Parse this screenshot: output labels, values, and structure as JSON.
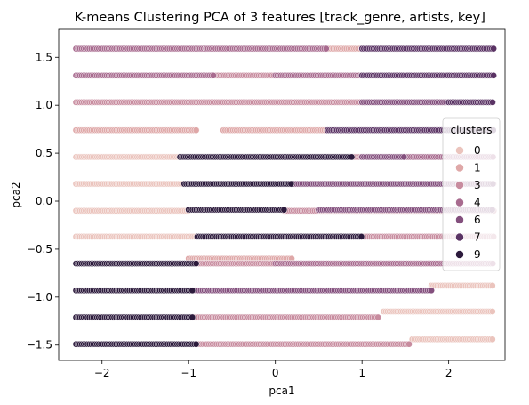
{
  "chart_data": {
    "type": "scatter",
    "title": "K-means Clustering PCA of 3 features [track_genre, artists, key]",
    "xlabel": "pca1",
    "ylabel": "pca2",
    "xlim": [
      -2.5,
      2.65
    ],
    "ylim": [
      -1.66,
      1.79
    ],
    "x_ticks": [
      -2,
      -1,
      0,
      1,
      2
    ],
    "y_ticks": [
      -1.5,
      -1.0,
      -0.5,
      0.0,
      0.5,
      1.0,
      1.5
    ],
    "x_tick_labels": [
      "−2",
      "−1",
      "0",
      "1",
      "2"
    ],
    "y_tick_labels": [
      "−1.5",
      "−1.0",
      "−0.5",
      "0.0",
      "0.5",
      "1.0",
      "1.5"
    ],
    "grid": false,
    "legend": {
      "title": "clusters",
      "placement": "right",
      "entries": [
        {
          "label": "0",
          "color": "#ebc4bd"
        },
        {
          "label": "1",
          "color": "#dfa8a8"
        },
        {
          "label": "3",
          "color": "#c88c9f"
        },
        {
          "label": "4",
          "color": "#a86b8f"
        },
        {
          "label": "6",
          "color": "#834f7d"
        },
        {
          "label": "7",
          "color": "#5a3364"
        },
        {
          "label": "9",
          "color": "#2c1a3c"
        }
      ]
    },
    "series": [
      {
        "name": "0",
        "segments": [
          [
            1.58,
            -1.44,
            2.52
          ],
          [
            1.25,
            -1.15,
            2.52
          ],
          [
            1.8,
            -0.88,
            2.52
          ],
          [
            -2.3,
            -0.37,
            -0.9
          ],
          [
            -2.3,
            -0.1,
            -1.0
          ],
          [
            -2.3,
            0.18,
            -0.95
          ],
          [
            -2.3,
            0.46,
            -1.1
          ],
          [
            -0.9,
            0.46,
            0.0
          ]
        ]
      },
      {
        "name": "1",
        "segments": [
          [
            -0.9,
            -0.09,
            0.5
          ],
          [
            -2.3,
            0.74,
            -0.9
          ],
          [
            -0.1,
            0.18,
            2.52
          ],
          [
            -0.6,
            0.74,
            0.6
          ],
          [
            -1.0,
            -0.6,
            0.2
          ],
          [
            0.6,
            1.59,
            1.0
          ]
        ]
      },
      {
        "name": "3",
        "segments": [
          [
            -0.9,
            -1.49,
            1.55
          ],
          [
            -0.95,
            -1.21,
            1.2
          ],
          [
            -0.9,
            -0.65,
            0.0
          ],
          [
            0.1,
            -0.1,
            2.52
          ],
          [
            1.0,
            -0.37,
            2.52
          ],
          [
            -2.3,
            1.03,
            -0.3
          ],
          [
            0.0,
            0.46,
            1.0
          ],
          [
            -0.3,
            1.03,
            1.1
          ],
          [
            -0.7,
            1.31,
            0.0
          ]
        ]
      },
      {
        "name": "4",
        "segments": [
          [
            0.0,
            -0.65,
            2.52
          ],
          [
            1.5,
            0.46,
            2.52
          ],
          [
            -2.3,
            1.31,
            -0.7
          ],
          [
            0.0,
            1.31,
            1.0
          ],
          [
            -2.3,
            1.59,
            -0.8
          ],
          [
            -0.8,
            1.59,
            0.6
          ],
          [
            0.7,
            0.74,
            2.52
          ]
        ]
      },
      {
        "name": "6",
        "segments": [
          [
            -0.95,
            -0.93,
            1.8
          ],
          [
            1.0,
            0.46,
            1.5
          ],
          [
            0.5,
            -0.09,
            2.52
          ],
          [
            1.0,
            1.03,
            2.0
          ],
          [
            0.2,
            0.18,
            2.52
          ]
        ]
      },
      {
        "name": "7",
        "segments": [
          [
            0.6,
            0.74,
            2.52
          ],
          [
            2.0,
            1.03,
            2.52
          ],
          [
            1.0,
            1.31,
            2.52
          ],
          [
            1.0,
            1.59,
            2.52
          ]
        ]
      },
      {
        "name": "9",
        "segments": [
          [
            -2.3,
            -1.49,
            -0.9
          ],
          [
            -2.3,
            -1.21,
            -0.95
          ],
          [
            -2.3,
            -0.93,
            -0.95
          ],
          [
            -2.3,
            -0.65,
            -0.9
          ],
          [
            -0.9,
            -0.37,
            1.0
          ],
          [
            -1.0,
            -0.09,
            0.1
          ],
          [
            -1.05,
            0.18,
            0.2
          ],
          [
            -1.1,
            0.46,
            0.9
          ]
        ]
      }
    ]
  }
}
